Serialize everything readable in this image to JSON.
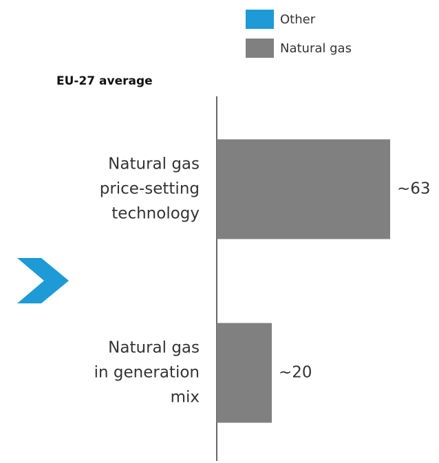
{
  "chart_data": {
    "type": "bar",
    "orientation": "horizontal",
    "title": "EU-27 average",
    "categories": [
      [
        "Natural gas",
        "price-setting",
        "technology"
      ],
      [
        "Natural gas",
        "in generation",
        "mix"
      ]
    ],
    "series": [
      {
        "name": "Other",
        "color": "#1e9ad6",
        "values": [
          null,
          null
        ]
      },
      {
        "name": "Natural gas",
        "color": "#808080",
        "values": [
          63,
          20
        ],
        "value_labels": [
          "~63",
          "~20"
        ]
      }
    ]
  }
}
